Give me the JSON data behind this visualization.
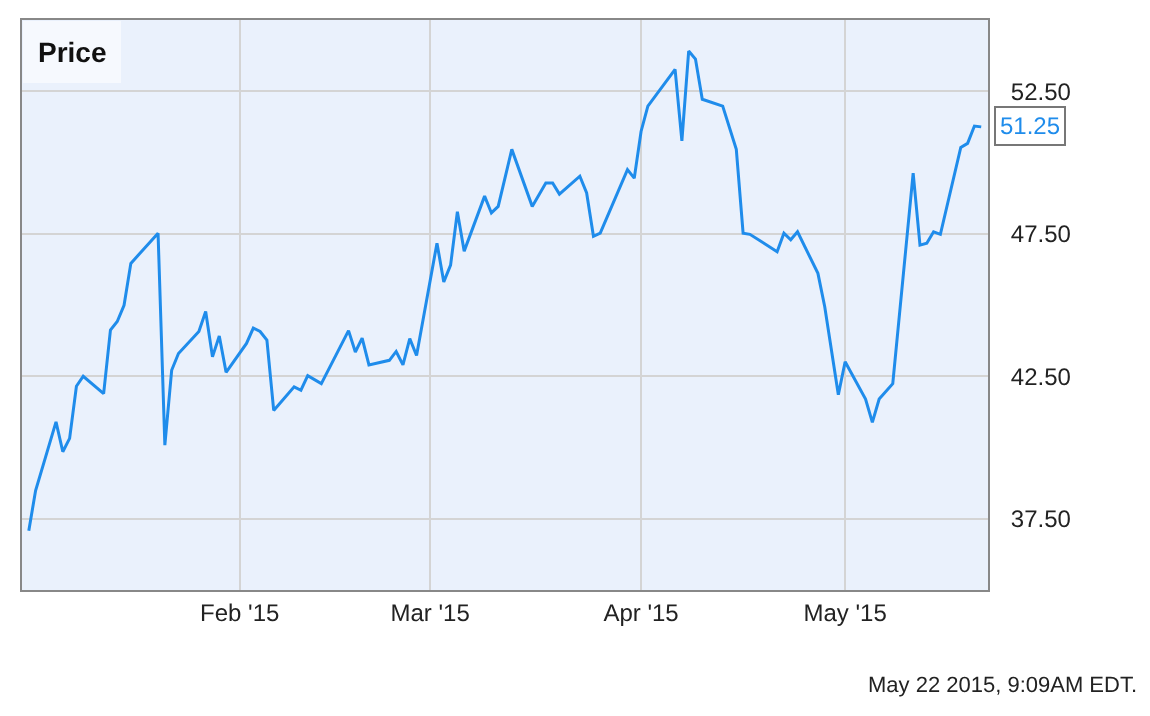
{
  "chart_data": {
    "type": "line",
    "title": "Price",
    "x": [
      "2015-01-01",
      "2015-01-02",
      "2015-01-05",
      "2015-01-06",
      "2015-01-07",
      "2015-01-08",
      "2015-01-09",
      "2015-01-12",
      "2015-01-13",
      "2015-01-14",
      "2015-01-15",
      "2015-01-16",
      "2015-01-20",
      "2015-01-21",
      "2015-01-22",
      "2015-01-23",
      "2015-01-26",
      "2015-01-27",
      "2015-01-28",
      "2015-01-29",
      "2015-01-30",
      "2015-02-02",
      "2015-02-03",
      "2015-02-04",
      "2015-02-05",
      "2015-02-06",
      "2015-02-09",
      "2015-02-10",
      "2015-02-11",
      "2015-02-13",
      "2015-02-17",
      "2015-02-18",
      "2015-02-19",
      "2015-02-20",
      "2015-02-23",
      "2015-02-24",
      "2015-02-25",
      "2015-02-26",
      "2015-02-27",
      "2015-03-02",
      "2015-03-03",
      "2015-03-04",
      "2015-03-05",
      "2015-03-06",
      "2015-03-09",
      "2015-03-10",
      "2015-03-11",
      "2015-03-13",
      "2015-03-16",
      "2015-03-18",
      "2015-03-19",
      "2015-03-20",
      "2015-03-23",
      "2015-03-24",
      "2015-03-25",
      "2015-03-26",
      "2015-03-30",
      "2015-03-31",
      "2015-04-01",
      "2015-04-02",
      "2015-04-06",
      "2015-04-07",
      "2015-04-08",
      "2015-04-09",
      "2015-04-10",
      "2015-04-13",
      "2015-04-15",
      "2015-04-16",
      "2015-04-17",
      "2015-04-21",
      "2015-04-22",
      "2015-04-23",
      "2015-04-24",
      "2015-04-27",
      "2015-04-28",
      "2015-04-30",
      "2015-05-01",
      "2015-05-04",
      "2015-05-05",
      "2015-05-06",
      "2015-05-08",
      "2015-05-11",
      "2015-05-12",
      "2015-05-13",
      "2015-05-14",
      "2015-05-15",
      "2015-05-18",
      "2015-05-19",
      "2015-05-20",
      "2015-05-21"
    ],
    "series": [
      {
        "color": "#1f8ceb",
        "values": [
          37.08,
          38.49,
          40.9,
          39.85,
          40.32,
          42.15,
          42.5,
          41.89,
          44.12,
          44.42,
          44.99,
          46.46,
          47.52,
          40.08,
          42.71,
          43.3,
          44.07,
          44.77,
          43.18,
          43.91,
          42.64,
          43.65,
          44.19,
          44.07,
          43.77,
          41.3,
          42.13,
          42.01,
          42.52,
          42.24,
          44.1,
          43.35,
          43.84,
          42.9,
          43.06,
          43.37,
          42.9,
          43.82,
          43.23,
          47.17,
          45.81,
          46.4,
          48.27,
          46.89,
          48.82,
          48.23,
          48.46,
          50.46,
          48.46,
          49.28,
          49.28,
          48.89,
          49.52,
          48.93,
          47.41,
          47.52,
          49.75,
          49.45,
          51.09,
          51.98,
          53.27,
          50.76,
          53.91,
          53.63,
          52.22,
          51.98,
          50.46,
          47.52,
          47.48,
          46.87,
          47.52,
          47.29,
          47.57,
          46.11,
          44.94,
          41.85,
          43.01,
          41.7,
          40.88,
          41.7,
          42.24,
          49.63,
          47.1,
          47.17,
          47.57,
          47.48,
          50.53,
          50.67,
          51.28,
          51.25
        ]
      }
    ],
    "xlim": [
      "2014-12-31",
      "2015-05-22"
    ],
    "xticks": [
      {
        "value": "2015-02-01",
        "label": "Feb '15"
      },
      {
        "value": "2015-03-01",
        "label": "Mar '15"
      },
      {
        "value": "2015-04-01",
        "label": "Apr '15"
      },
      {
        "value": "2015-05-01",
        "label": "May '15"
      }
    ],
    "ylim": [
      35,
      55
    ],
    "yticks": [
      {
        "value": 37.5,
        "label": "37.50"
      },
      {
        "value": 42.5,
        "label": "42.50"
      },
      {
        "value": 47.5,
        "label": "47.50"
      },
      {
        "value": 52.5,
        "label": "52.50"
      }
    ],
    "grid": true,
    "marker": "none",
    "line_style": "solid",
    "annotations": [
      {
        "text": "51.25",
        "x": "2015-05-21",
        "y": 51.25
      },
      "May 22 2015, 9:09AM EDT."
    ]
  }
}
